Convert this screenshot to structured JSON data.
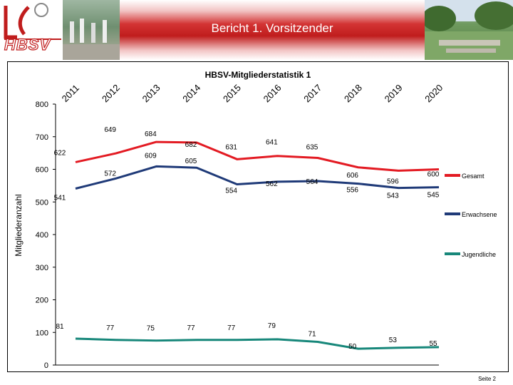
{
  "header": {
    "title": "Bericht 1. Vorsitzender",
    "logo_text": "HBSV"
  },
  "footer": {
    "page_label": "Seite 2"
  },
  "chart_data": {
    "type": "line",
    "title": "HBSV-Mitgliederstatistik 1",
    "ylabel": "Mitgliederanzahl",
    "xlabel": "",
    "categories": [
      "2011",
      "2012",
      "2013",
      "2014",
      "2015",
      "2016",
      "2017",
      "2018",
      "2019",
      "2020"
    ],
    "ylim": [
      0,
      800
    ],
    "yticks": [
      0,
      100,
      200,
      300,
      400,
      500,
      600,
      700,
      800
    ],
    "grid": false,
    "legend_position": "right",
    "series": [
      {
        "name": "Gesamt",
        "color": "#e31b23",
        "values": [
          622,
          649,
          684,
          682,
          631,
          641,
          635,
          606,
          596,
          600
        ]
      },
      {
        "name": "Erwachsene",
        "color": "#1f3a78",
        "values": [
          541,
          572,
          609,
          605,
          554,
          562,
          564,
          556,
          543,
          545
        ]
      },
      {
        "name": "Jugendliche",
        "color": "#17877a",
        "values": [
          81,
          77,
          75,
          77,
          77,
          79,
          71,
          50,
          53,
          55
        ]
      }
    ]
  }
}
